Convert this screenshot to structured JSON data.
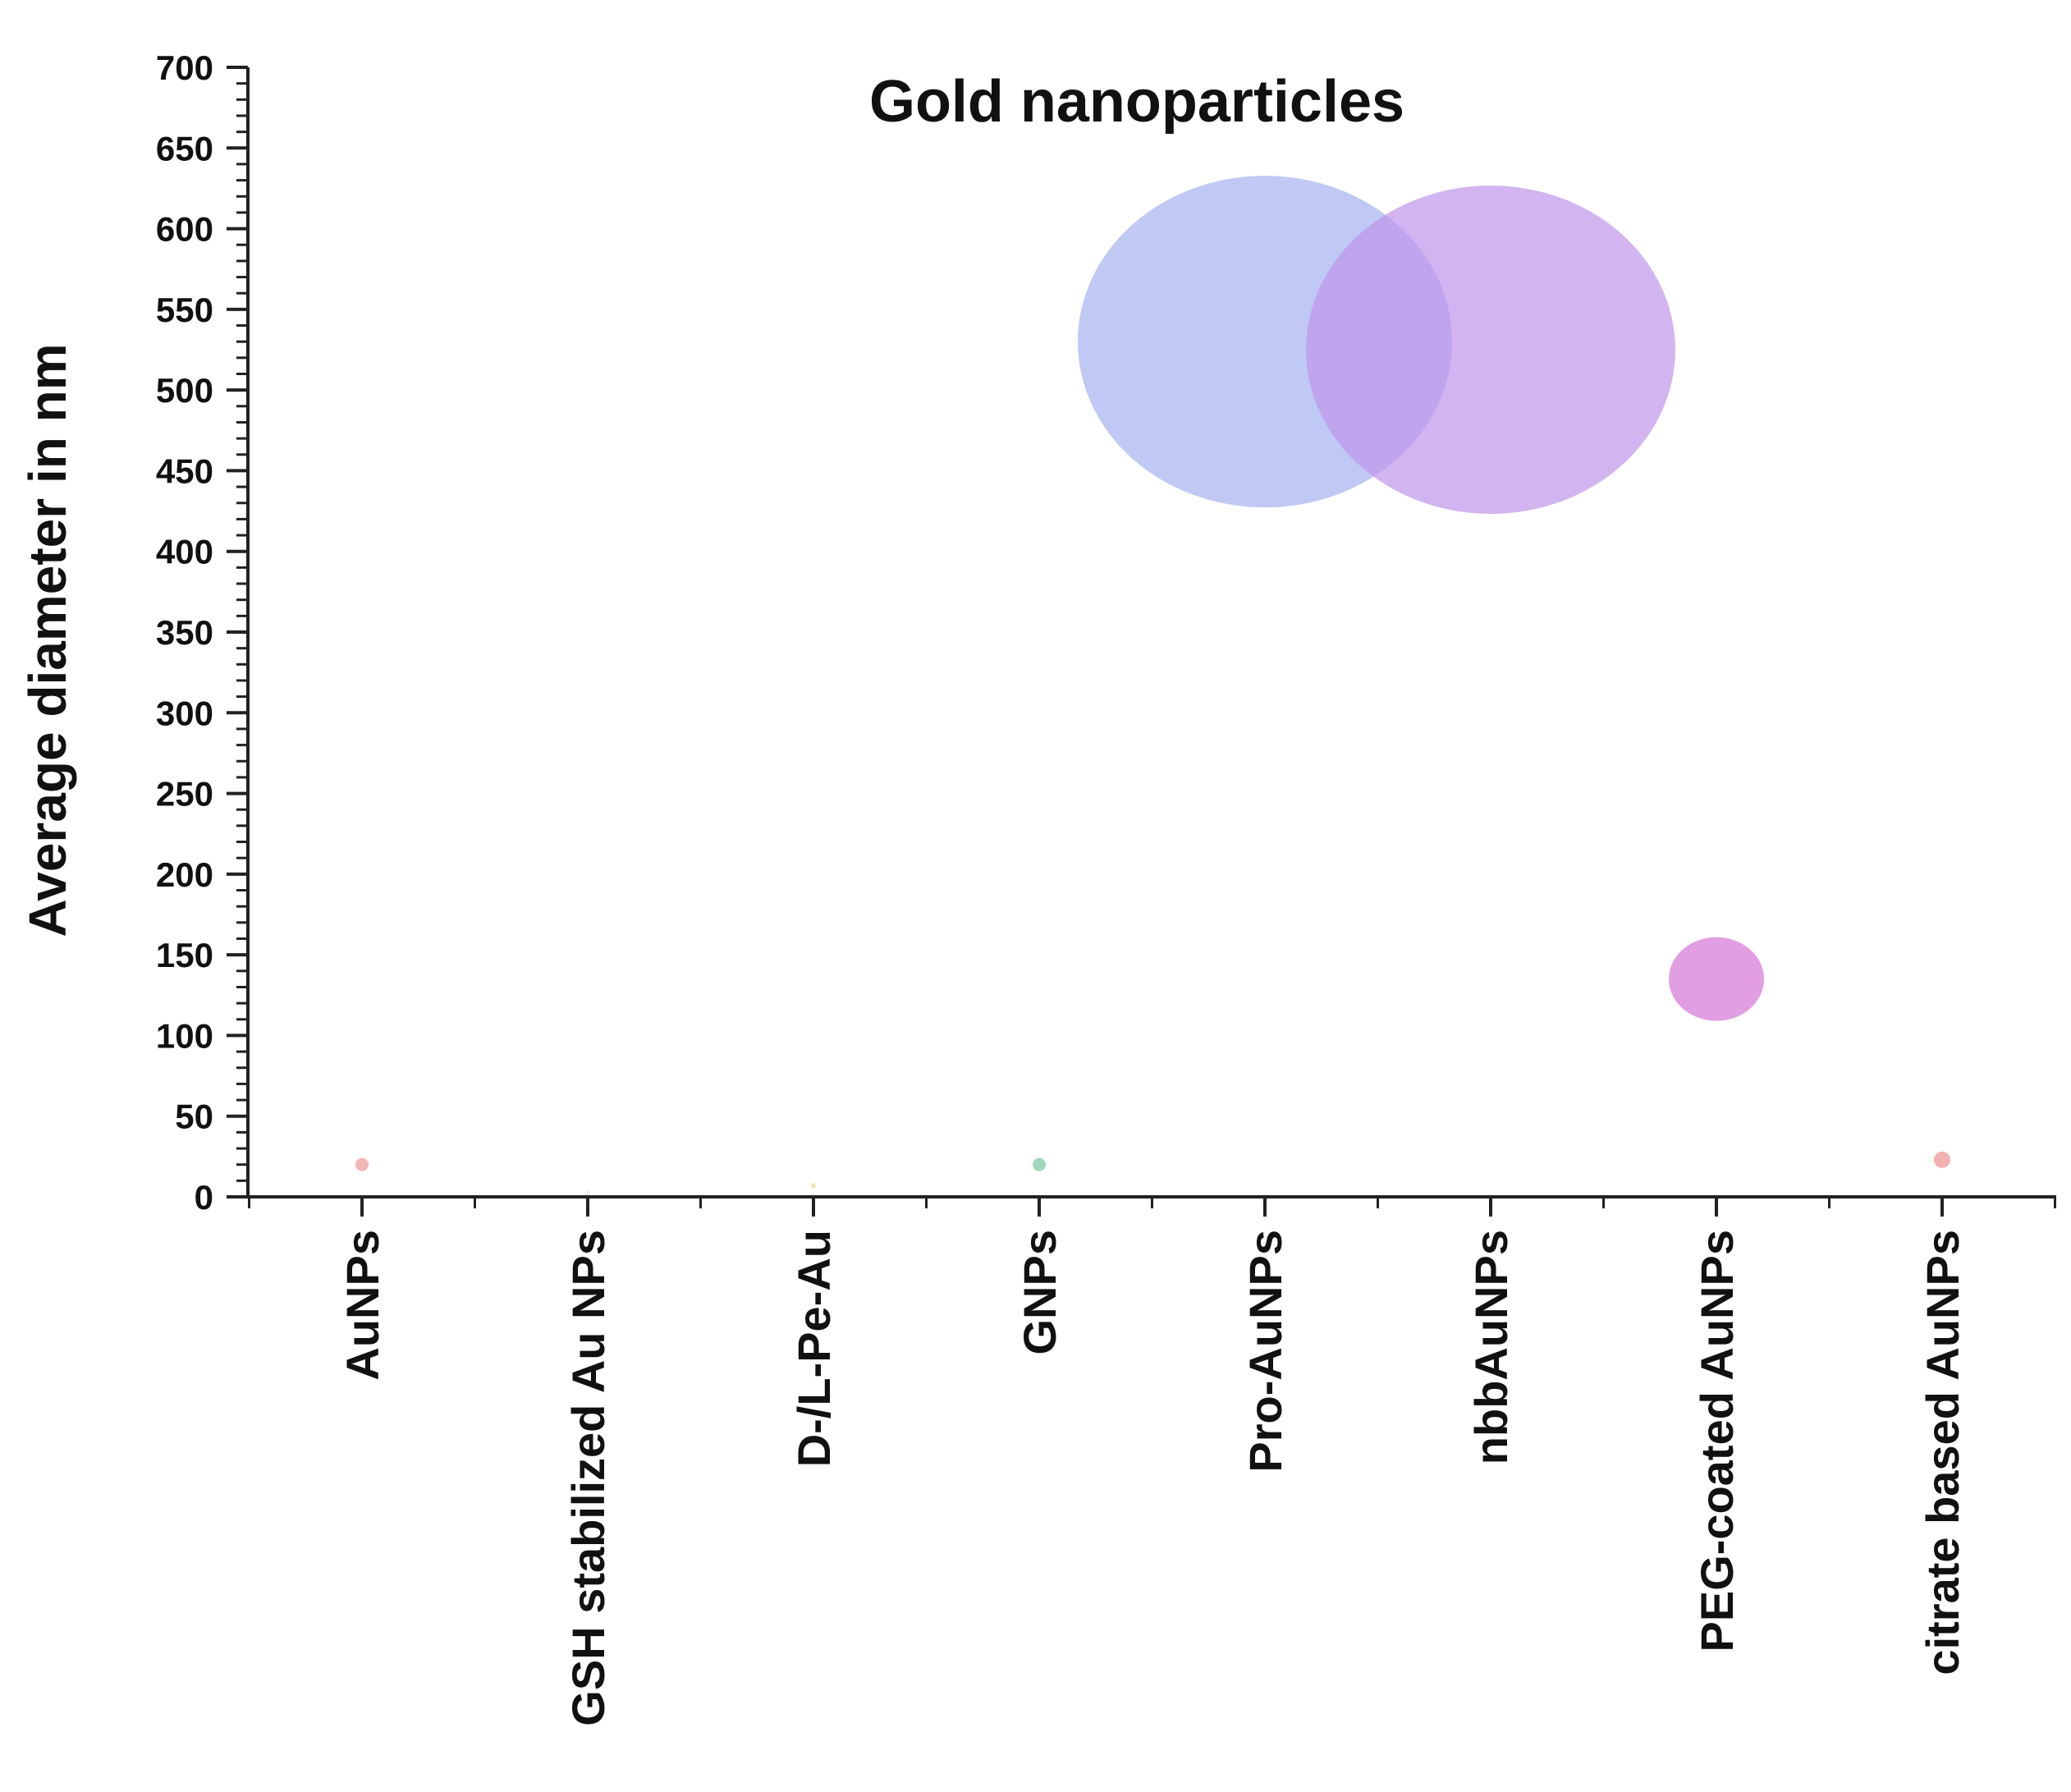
{
  "chart_data": {
    "type": "scatter",
    "title": "Gold nanoparticles",
    "xlabel": "",
    "ylabel": "Average diameter in nm",
    "ylim": [
      0,
      700
    ],
    "yticks": [
      "0",
      "50",
      "100",
      "150",
      "200",
      "250",
      "300",
      "350",
      "400",
      "450",
      "500",
      "550",
      "600",
      "650",
      "700"
    ],
    "categories": [
      "AuNPs",
      "GSH stabilized Au NPs",
      "D-/L-Pe-Au",
      "GNPs",
      "Pro-AuNPs",
      "nbbAuNPs",
      "PEG-coated AuNPs",
      "citrate based AuNPs"
    ],
    "values": [
      20,
      3,
      7,
      20,
      530,
      525,
      135,
      23
    ],
    "colors": [
      "#f1a9a9",
      "#f0f0f0",
      "#e8e2a8",
      "#8fd0b0",
      "#a4b2f0",
      "#bf95ea",
      "#dd8ddd",
      "#f0a2a2"
    ],
    "grid": false,
    "legend": "none"
  }
}
